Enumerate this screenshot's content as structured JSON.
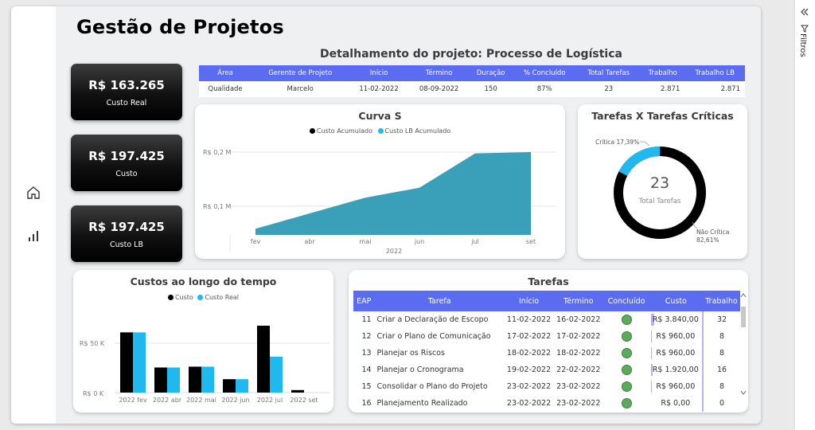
{
  "page": {
    "title": "Gestão de Projetos"
  },
  "nav": {
    "home_icon": "home-icon",
    "chart_icon": "bar-chart-icon"
  },
  "kpis": [
    {
      "value": "R$ 163.265",
      "label": "Custo Real"
    },
    {
      "value": "R$ 197.425",
      "label": "Custo"
    },
    {
      "value": "R$ 197.425",
      "label": "Custo LB"
    }
  ],
  "detail": {
    "title": "Detalhamento do projeto: Processo de Logística",
    "headers": [
      "Área",
      "Gerente de Projeto",
      "Início",
      "Término",
      "Duração",
      "% Concluído",
      "Total Tarefas",
      "Trabalho",
      "Trabalho LB"
    ],
    "row": [
      "Qualidade",
      "Marcelo",
      "11-02-2022",
      "08-09-2022",
      "150",
      "87%",
      "23",
      "2.871",
      "2.871"
    ]
  },
  "curva_s": {
    "title": "Curva S",
    "legend": [
      "Custo Acumulado",
      "Custo LB Acumulado"
    ],
    "y_ticks": [
      "R$ 0,2 M",
      "R$ 0,1 M"
    ],
    "x_ticks": [
      "fev",
      "abr",
      "mai",
      "jun",
      "jul",
      "set"
    ],
    "x_year": "2022"
  },
  "donut": {
    "title": "Tarefas X Tarefas Críticas",
    "center_value": "23",
    "center_label": "Total Tarefas",
    "critical_label": "Crítica 17,39%",
    "noncritical_label": "Não Crítica",
    "noncritical_pct": "82,61%"
  },
  "costs": {
    "title": "Custos ao longo do tempo",
    "legend": [
      "Custo",
      "Custo Real"
    ],
    "y_ticks": [
      "R$ 50 K",
      "R$ 0 K"
    ],
    "categories": [
      "2022 fev",
      "2022 abr",
      "2022 mai",
      "2022 jun",
      "2022 jul",
      "2022 set"
    ]
  },
  "tasks": {
    "title": "Tarefas",
    "headers": [
      "EAP",
      "Tarefa",
      "Início",
      "Término",
      "Concluído",
      "Custo",
      "Trabalho"
    ],
    "rows": [
      {
        "eap": "11",
        "task": "Criar a Declaração de Escopo",
        "start": "11-02-2022",
        "end": "16-02-2022",
        "cost": "R$ 3.840,00",
        "work": "32"
      },
      {
        "eap": "12",
        "task": "Criar o Plano de Comunicação",
        "start": "17-02-2022",
        "end": "17-02-2022",
        "cost": "R$ 960,00",
        "work": "8"
      },
      {
        "eap": "13",
        "task": "Planejar os Riscos",
        "start": "18-02-2022",
        "end": "18-02-2022",
        "cost": "R$ 960,00",
        "work": "8"
      },
      {
        "eap": "14",
        "task": "Planejar o Cronograma",
        "start": "19-02-2022",
        "end": "22-02-2022",
        "cost": "R$ 1.920,00",
        "work": "16"
      },
      {
        "eap": "15",
        "task": "Consolidar o Plano do Projeto",
        "start": "23-02-2022",
        "end": "23-02-2022",
        "cost": "R$ 960,00",
        "work": "8"
      },
      {
        "eap": "16",
        "task": "Planejamento Realizado",
        "start": "23-02-2022",
        "end": "23-02-2022",
        "cost": "R$ 0,00",
        "work": "0"
      }
    ]
  },
  "filters": {
    "label": "Filtros",
    "collapse_icon": "double-chevron-left-icon",
    "filter_icon": "funnel-icon"
  },
  "colors": {
    "accent": "#5b6cf0",
    "cyan": "#1fb8ef",
    "area": "#3a9fb8",
    "black": "#000000",
    "status_green": "#5cab5c"
  },
  "chart_data": [
    {
      "type": "area",
      "title": "Curva S",
      "categories": [
        "fev",
        "abr",
        "mai",
        "jun",
        "jul",
        "set"
      ],
      "series": [
        {
          "name": "Custo Acumulado",
          "values": [
            0.015,
            0.052,
            0.09,
            0.114,
            0.197,
            0.2
          ]
        }
      ],
      "ylabel": "",
      "ylim": [
        0,
        0.22
      ]
    },
    {
      "type": "pie",
      "title": "Tarefas X Tarefas Críticas",
      "categories": [
        "Crítica",
        "Não Crítica"
      ],
      "values": [
        17.39,
        82.61
      ]
    },
    {
      "type": "bar",
      "title": "Custos ao longo do tempo",
      "categories": [
        "2022 fev",
        "2022 abr",
        "2022 mai",
        "2022 jun",
        "2022 jul",
        "2022 set"
      ],
      "series": [
        {
          "name": "Custo",
          "values": [
            72,
            30,
            31,
            16,
            80,
            3
          ]
        },
        {
          "name": "Custo Real",
          "values": [
            72,
            30,
            31,
            16,
            43,
            0
          ]
        }
      ],
      "ylim": [
        0,
        100
      ]
    }
  ]
}
